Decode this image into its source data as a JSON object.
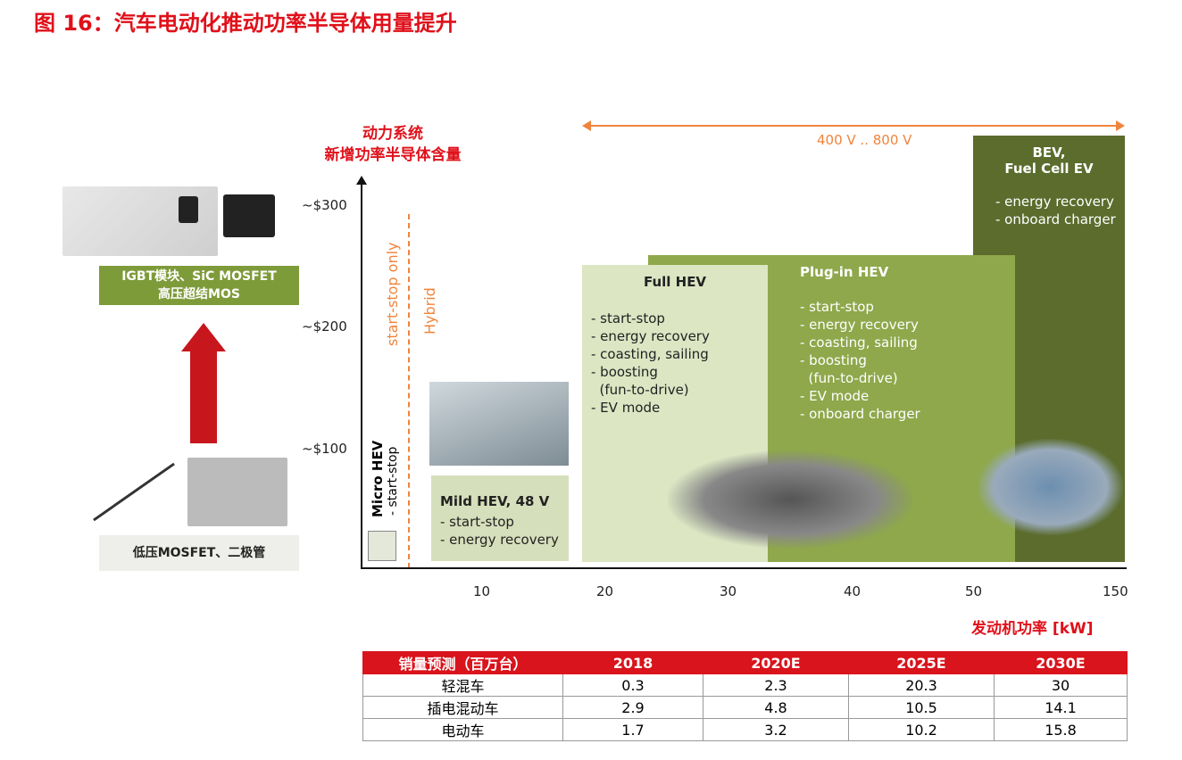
{
  "title": "图 16：汽车电动化推动功率半导体用量提升",
  "left": {
    "top_label_1": "IGBT模块、SiC MOSFET",
    "top_label_2": "高压超结MOS",
    "bottom_label": "低压MOSFET、二极管"
  },
  "chart": {
    "y_title_1": "动力系统",
    "y_title_2": "新增功率半导体含量",
    "y_ticks": [
      "~$300",
      "~$200",
      "~$100"
    ],
    "x_ticks": [
      "10",
      "20",
      "30",
      "40",
      "50",
      "150"
    ],
    "x_title": "发动机功率 [kW]",
    "voltage_range": "400 V .. 800 V",
    "start_stop_only": "start-stop only",
    "hybrid": "Hybrid",
    "micro": {
      "title": "Micro HEV",
      "item": "- start-stop"
    },
    "mild": {
      "title": "Mild HEV, 48 V",
      "items": [
        "- start-stop",
        "- energy recovery"
      ]
    },
    "full": {
      "title": "Full HEV",
      "items": [
        "- start-stop",
        "- energy recovery",
        "- coasting, sailing",
        "- boosting",
        "  (fun-to-drive)",
        "- EV mode"
      ]
    },
    "plugin": {
      "title": "Plug-in HEV",
      "items": [
        "- start-stop",
        "- energy recovery",
        "- coasting, sailing",
        "- boosting",
        "  (fun-to-drive)",
        "- EV mode",
        "- onboard charger"
      ]
    },
    "bev": {
      "title_1": "BEV,",
      "title_2": "Fuel Cell EV",
      "items": [
        "- energy recovery",
        "- onboard charger"
      ]
    },
    "colors": {
      "mild": "#d6dfbb",
      "full": "#dce6c3",
      "plugin": "#8ea84b",
      "bev": "#5b6c2d",
      "accent": "#e0101a",
      "orange": "#f0843c"
    }
  },
  "table": {
    "headers": [
      "销量预测（百万台）",
      "2018",
      "2020E",
      "2025E",
      "2030E"
    ],
    "rows": [
      [
        "轻混车",
        "0.3",
        "2.3",
        "20.3",
        "30"
      ],
      [
        "插电混动车",
        "2.9",
        "4.8",
        "10.5",
        "14.1"
      ],
      [
        "电动车",
        "1.7",
        "3.2",
        "10.2",
        "15.8"
      ]
    ]
  }
}
